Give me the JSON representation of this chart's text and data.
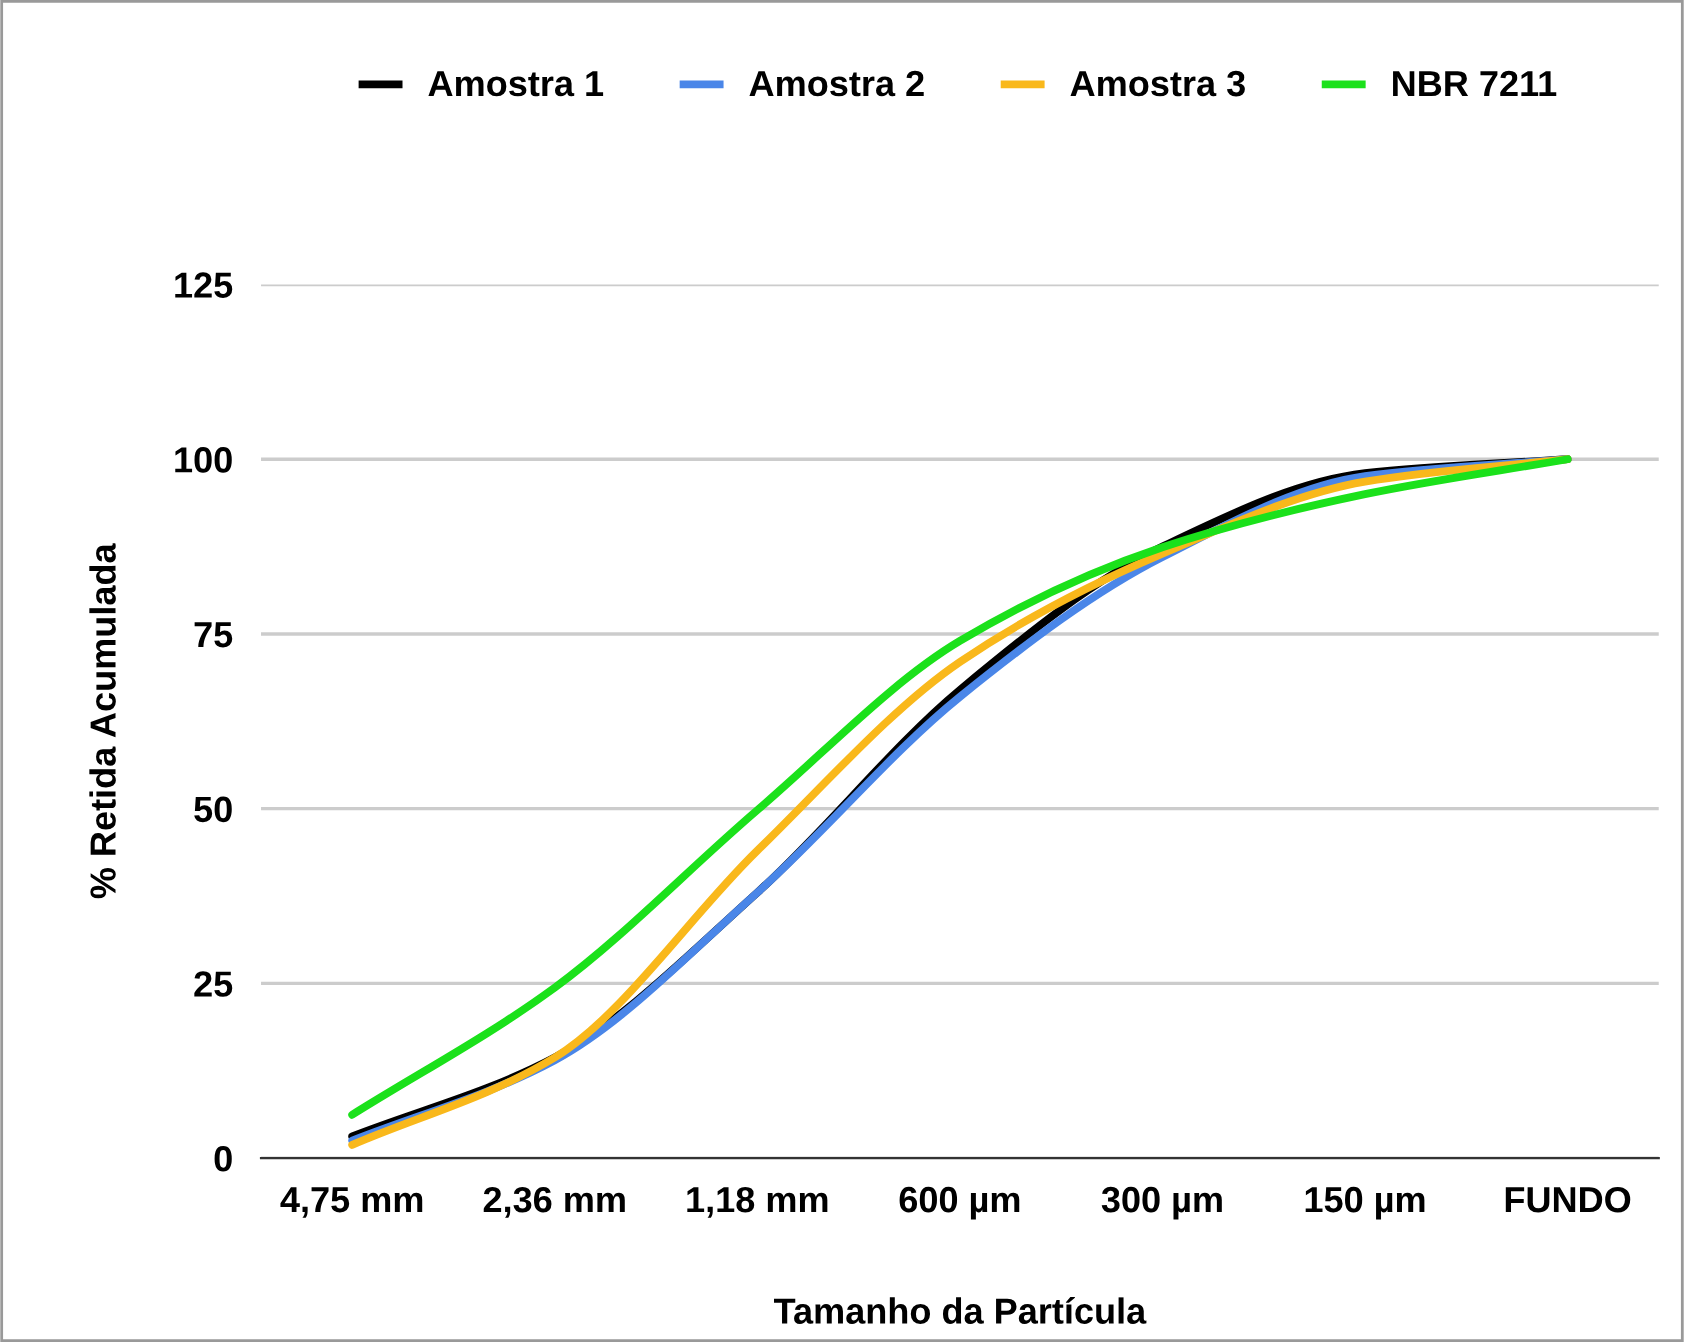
{
  "chart_data": {
    "type": "line",
    "xlabel": "Tamanho da Partícula",
    "ylabel": "% Retida Acumulada",
    "categories": [
      "4,75 mm",
      "2,36 mm",
      "1,18 mm",
      "600 µm",
      "300 µm",
      "150 µm",
      "FUNDO"
    ],
    "series": [
      {
        "name": "Amostra 1",
        "color": "#000000",
        "values": [
          3.1,
          14.4,
          38,
          67,
          87.5,
          98,
          100
        ]
      },
      {
        "name": "Amostra 2",
        "color": "#4a86e8",
        "values": [
          2.5,
          14,
          38,
          66,
          86,
          97.6,
          100
        ]
      },
      {
        "name": "Amostra 3",
        "color": "#f9b81b",
        "values": [
          1.9,
          14.4,
          44,
          71,
          86.5,
          96.8,
          100
        ]
      },
      {
        "name": "NBR 7211",
        "color": "#1be11b",
        "values": [
          6.2,
          24.4,
          49.8,
          74,
          87.4,
          95,
          100
        ]
      }
    ],
    "ylim": [
      0,
      125
    ],
    "yticks": [
      0,
      25,
      50,
      75,
      100,
      125
    ],
    "grid": "y",
    "legend": "top",
    "marker": "none",
    "line_style": "solid"
  }
}
